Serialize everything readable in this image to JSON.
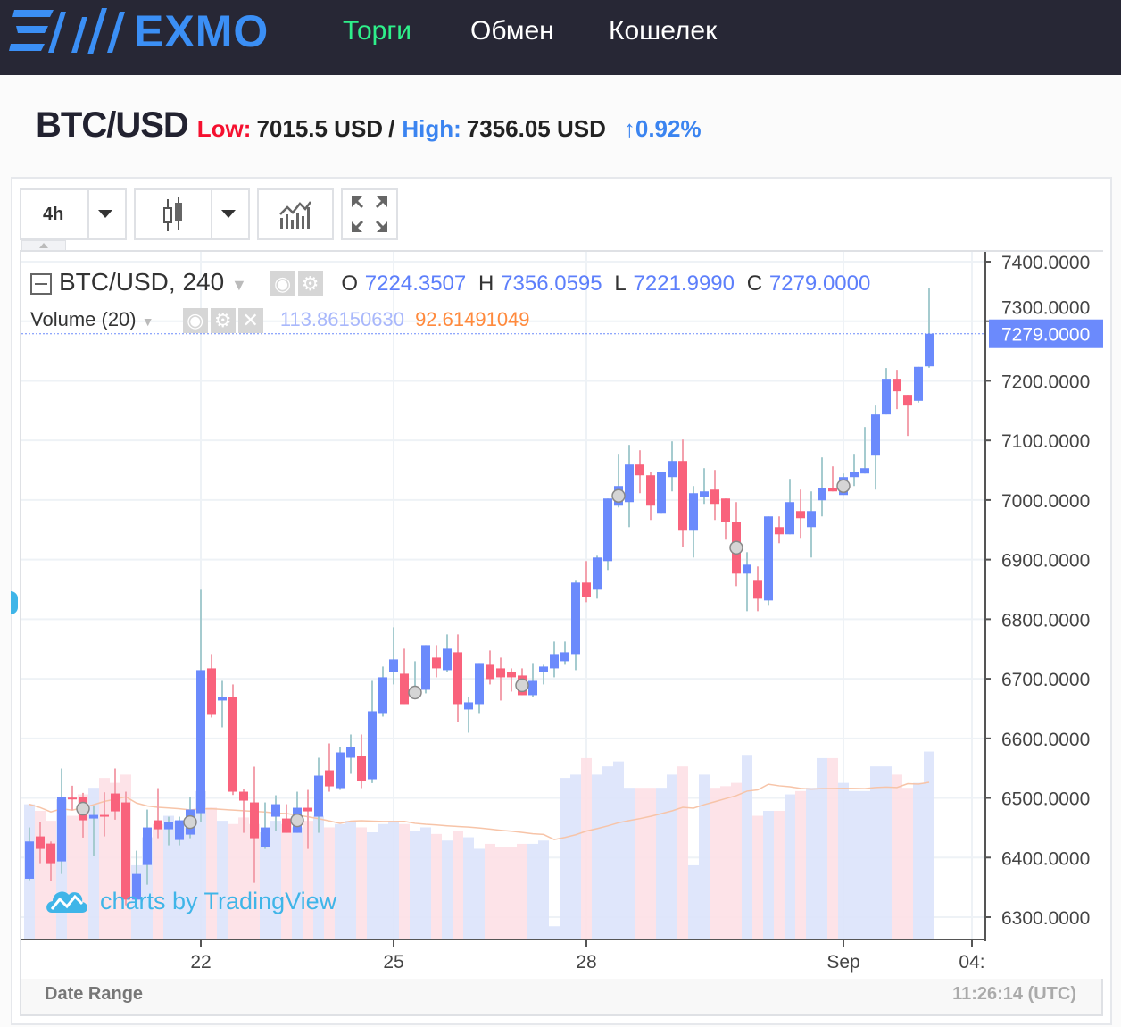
{
  "header": {
    "logo": "EXMO",
    "nav": [
      {
        "label": "Торги",
        "active": true
      },
      {
        "label": "Обмен"
      },
      {
        "label": "Кошелек"
      }
    ]
  },
  "ticker": {
    "pair": "BTC/USD",
    "low_label": "Low:",
    "low_value": "7015.5 USD",
    "sep": "/",
    "high_label": "High:",
    "high_value": "7356.05 USD",
    "change": "0.92%",
    "change_arrow": "↑"
  },
  "toolbar": {
    "interval": "4h"
  },
  "legend": {
    "symbol": "BTC/USD, 240",
    "o_label": "O",
    "o": "7224.3507",
    "h_label": "H",
    "h": "7356.0595",
    "l_label": "L",
    "l": "7221.9990",
    "c_label": "C",
    "c": "7279.0000",
    "volume_label": "Volume (20)",
    "volume": "113.86150630",
    "volume_ma": "92.61491049"
  },
  "watermark": "charts by TradingView",
  "footer": {
    "date_range": "Date Range",
    "clock": "11:26:14 (UTC)"
  },
  "colors": {
    "up": "#6b8afc",
    "down": "#f9627c",
    "up_wick": "#a5cbcf",
    "down_wick": "#f3a1ad",
    "vol_up": "#dbe3fb",
    "vol_down": "#fde0e6",
    "ma": "#f7c4a8",
    "accent": "#3b8ff5",
    "current": "#6b8afc"
  },
  "chart_data": {
    "type": "candlestick",
    "title": "BTC/USD, 240",
    "current_price": 7279.0,
    "ylim": [
      6280,
      7420
    ],
    "y_ticks": [
      "7400.0000",
      "7300.0000",
      "7200.0000",
      "7100.0000",
      "7000.0000",
      "6900.0000",
      "6800.0000",
      "6700.0000",
      "6600.0000",
      "6500.0000",
      "6400.0000",
      "6300.0000"
    ],
    "y_tick_values": [
      7400,
      7300,
      7200,
      7100,
      7000,
      6900,
      6800,
      6700,
      6600,
      6500,
      6400,
      6300
    ],
    "current_label": "7279.0000",
    "x_ticks": [
      {
        "label": "22",
        "index": 16
      },
      {
        "label": "25",
        "index": 34
      },
      {
        "label": "28",
        "index": 52
      },
      {
        "label": "Sep",
        "index": 76
      },
      {
        "label": "04:",
        "index": 88
      }
    ],
    "markers": [
      5,
      15,
      25,
      36,
      46,
      55,
      66,
      76
    ],
    "ohlc": [
      [
        6364.5,
        6450.5,
        6362,
        6427
      ],
      [
        6435.5,
        6459.5,
        6390.5,
        6414.5
      ],
      [
        6423.5,
        6427,
        6360.5,
        6390.5
      ],
      [
        6393.5,
        6549.5,
        6372.5,
        6501.5
      ],
      [
        6500.5,
        6520.5,
        6479.5,
        6498.5
      ],
      [
        6501.5,
        6508.5,
        6433.5,
        6462.5
      ],
      [
        6465.5,
        6487,
        6402,
        6471.5
      ],
      [
        6471.5,
        6509.5,
        6435.5,
        6469.5
      ],
      [
        6507.5,
        6549.5,
        6463.5,
        6477.5
      ],
      [
        6492.5,
        6510.5,
        6320,
        6329.5
      ],
      [
        6329.5,
        6411.5,
        6320,
        6372.5
      ],
      [
        6387.5,
        6480.5,
        6354.5,
        6450.5
      ],
      [
        6462.5,
        6516.5,
        6432.5,
        6447.5
      ],
      [
        6447.5,
        6468.5,
        6420.5,
        6459.5
      ],
      [
        6429.5,
        6468.5,
        6420.5,
        6462.5
      ],
      [
        6438.5,
        6501.5,
        6432.5,
        6480.5
      ],
      [
        6474.5,
        6849.5,
        6459.5,
        6714.5
      ],
      [
        6717.5,
        6741.5,
        6635,
        6639.5
      ],
      [
        6663.5,
        6696.5,
        6618.5,
        6669.5
      ],
      [
        6669.5,
        6690.5,
        6505,
        6510.5
      ],
      [
        6510.5,
        6515,
        6441.5,
        6495.5
      ],
      [
        6492.5,
        6552.5,
        6357.5,
        6432.5
      ],
      [
        6417.5,
        6492.5,
        6414.5,
        6450.5
      ],
      [
        6468.5,
        6504.5,
        6444.5,
        6489.5
      ],
      [
        6465.5,
        6489.5,
        6441.5,
        6441.5
      ],
      [
        6441.5,
        6510.5,
        6441.5,
        6483.5
      ],
      [
        6483.5,
        6513.5,
        6414.5,
        6477.5
      ],
      [
        6468.5,
        6567.5,
        6441.5,
        6537.5
      ],
      [
        6546.5,
        6591.5,
        6510.5,
        6519.5
      ],
      [
        6516.5,
        6585.5,
        6513.5,
        6576.5
      ],
      [
        6567.5,
        6606.5,
        6540.5,
        6585.5
      ],
      [
        6570.5,
        6606.5,
        6516.5,
        6528.5
      ],
      [
        6531.5,
        6696.5,
        6525,
        6645.5
      ],
      [
        6642.5,
        6720.5,
        6636.5,
        6702.5
      ],
      [
        6711.5,
        6786.5,
        6690.5,
        6732.5
      ],
      [
        6708.5,
        6750.5,
        6657.5,
        6657.5
      ],
      [
        6669.5,
        6729.5,
        6666.5,
        6684.5
      ],
      [
        6681.5,
        6756.5,
        6675.5,
        6756.5
      ],
      [
        6735.5,
        6756.5,
        6702.5,
        6717.5
      ],
      [
        6714.5,
        6774.5,
        6711.5,
        6750.5
      ],
      [
        6744.5,
        6774.5,
        6627.5,
        6657.5
      ],
      [
        6648.5,
        6669.5,
        6609.5,
        6660.5
      ],
      [
        6657.5,
        6726.5,
        6642.5,
        6726.5
      ],
      [
        6723.5,
        6747.5,
        6690.5,
        6699.5
      ],
      [
        6717.5,
        6735.5,
        6663.5,
        6702.5
      ],
      [
        6711.5,
        6717.5,
        6678.5,
        6702.5
      ],
      [
        6705.5,
        6717.5,
        6672.5,
        6672.5
      ],
      [
        6672.5,
        6726.5,
        6669.5,
        6696.5
      ],
      [
        6711.5,
        6723.5,
        6690.5,
        6720.5
      ],
      [
        6717.5,
        6762.5,
        6702.5,
        6741.5
      ],
      [
        6729.5,
        6762.5,
        6723.5,
        6744.5
      ],
      [
        6741.5,
        6864.5,
        6714.5,
        6861.5
      ],
      [
        6861.5,
        6897.5,
        6828.5,
        6837.5
      ],
      [
        6849.5,
        6906.5,
        6834.5,
        6903.5
      ],
      [
        6897.5,
        7002.5,
        6882.5,
        7002.5
      ],
      [
        6990.5,
        7077.5,
        6987.5,
        7023.5
      ],
      [
        6996.5,
        7092.5,
        6954.5,
        7059.5
      ],
      [
        7059.5,
        7083.5,
        7011.5,
        7041.5
      ],
      [
        7041.5,
        7047.5,
        6966.5,
        6990.5
      ],
      [
        6978.5,
        7047.5,
        6978.5,
        7047.5
      ],
      [
        7038.5,
        7098.5,
        7014.5,
        7065.5
      ],
      [
        7065.5,
        7101.5,
        6921.5,
        6948.5
      ],
      [
        6948.5,
        7023.5,
        6903.5,
        7011.5
      ],
      [
        7005.5,
        7053.5,
        6993.5,
        7014.5
      ],
      [
        7017.5,
        7050.5,
        6966.5,
        6993.5
      ],
      [
        7002.5,
        7002.5,
        6933.5,
        6963.5
      ],
      [
        6963.5,
        6996.5,
        6855.5,
        6876.5
      ],
      [
        6876.5,
        6912.5,
        6813.5,
        6891.5
      ],
      [
        6864.5,
        6888.5,
        6813.5,
        6834.5
      ],
      [
        6831.5,
        6972.5,
        6822.5,
        6972.5
      ],
      [
        6954.5,
        6972.5,
        6927.5,
        6942.5
      ],
      [
        6942.5,
        7035.5,
        6942.5,
        6996.5
      ],
      [
        6981.5,
        7017.5,
        6936.5,
        6969.5
      ],
      [
        6954.5,
        7014.5,
        6903.5,
        6981.5
      ],
      [
        6999.5,
        7071.5,
        6972.5,
        7020.5
      ],
      [
        7020.5,
        7056.5,
        7014.5,
        7014.5
      ],
      [
        7008.5,
        7044.5,
        7008.5,
        7038.5
      ],
      [
        7038.5,
        7077.5,
        7023.5,
        7047.5
      ],
      [
        7044.5,
        7122.5,
        7044.5,
        7053.5
      ],
      [
        7074.5,
        7158.5,
        7017.5,
        7143.5
      ],
      [
        7143.5,
        7221.5,
        7143.5,
        7203.5
      ],
      [
        7203.5,
        7218.5,
        7152.5,
        7182.5
      ],
      [
        7176.5,
        7176.5,
        7107.5,
        7158.5
      ],
      [
        7166.5,
        7223.5,
        7163.5,
        7223.5
      ],
      [
        7224.35,
        7356.06,
        7221.99,
        7279.0
      ]
    ],
    "volume": [
      82,
      78,
      72,
      85,
      75,
      88,
      92,
      98,
      95,
      100,
      45,
      62,
      70,
      75,
      72,
      68,
      90,
      80,
      72,
      70,
      74,
      70,
      65,
      72,
      70,
      68,
      72,
      75,
      68,
      70,
      72,
      68,
      65,
      70,
      72,
      70,
      66,
      68,
      64,
      60,
      66,
      62,
      55,
      58,
      56,
      56,
      58,
      58,
      60,
      8,
      98,
      100,
      110,
      100,
      105,
      108,
      92,
      92,
      92,
      92,
      100,
      105,
      45,
      100,
      92,
      93,
      95,
      112,
      75,
      78,
      78,
      88,
      90,
      92,
      110,
      110,
      95,
      90,
      90,
      105,
      105,
      100,
      92,
      95,
      114
    ],
    "volume_max": 130
  }
}
